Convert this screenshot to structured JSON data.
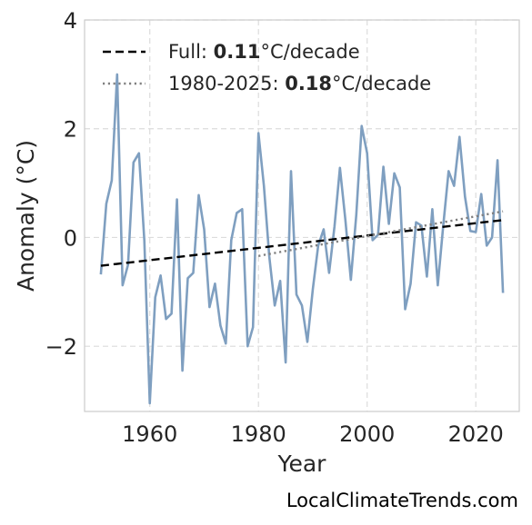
{
  "chart_data": {
    "type": "line",
    "xlabel": "Year",
    "ylabel": "Anomaly (°C)",
    "xlim": [
      1948,
      2028
    ],
    "ylim": [
      -3.2,
      4.0
    ],
    "xticks": [
      1960,
      1980,
      2000,
      2020
    ],
    "yticks": [
      -2,
      0,
      2,
      4
    ],
    "ytick_labels": [
      "−2",
      "0",
      "2",
      "4"
    ],
    "grid": true,
    "legend_position": "top-left",
    "series": [
      {
        "x": [
          1951,
          1952,
          1953,
          1954,
          1955,
          1956,
          1957,
          1958,
          1959,
          1960,
          1961,
          1962,
          1963,
          1964,
          1965,
          1966,
          1967,
          1968,
          1969,
          1970,
          1971,
          1972,
          1973,
          1974,
          1975,
          1976,
          1977,
          1978,
          1979,
          1980,
          1981,
          1982,
          1983,
          1984,
          1985,
          1986,
          1987,
          1988,
          1989,
          1990,
          1991,
          1992,
          1993,
          1994,
          1995,
          1996,
          1997,
          1998,
          1999,
          2000,
          2001,
          2002,
          2003,
          2004,
          2005,
          2006,
          2007,
          2008,
          2009,
          2010,
          2011,
          2012,
          2013,
          2014,
          2015,
          2016,
          2017,
          2018,
          2019,
          2020,
          2021,
          2022,
          2023,
          2024,
          2025
        ],
        "values": [
          -0.68,
          0.62,
          1.05,
          3.0,
          -0.88,
          -0.5,
          1.38,
          1.55,
          -0.05,
          -3.05,
          -1.1,
          -0.7,
          -1.5,
          -1.4,
          0.7,
          -2.45,
          -0.75,
          -0.65,
          0.78,
          0.15,
          -1.28,
          -0.85,
          -1.62,
          -1.95,
          -0.05,
          0.45,
          0.52,
          -2.0,
          -1.65,
          1.92,
          0.95,
          -0.35,
          -1.25,
          -0.8,
          -2.3,
          1.22,
          -1.05,
          -1.25,
          -1.92,
          -0.95,
          -0.15,
          0.15,
          -0.65,
          0.2,
          1.28,
          0.32,
          -0.78,
          0.42,
          2.05,
          1.55,
          -0.05,
          0.05,
          1.3,
          0.25,
          1.18,
          0.92,
          -1.32,
          -0.85,
          0.28,
          0.22,
          -0.72,
          0.52,
          -0.88,
          0.2,
          1.22,
          0.95,
          1.85,
          0.75,
          0.12,
          0.1,
          0.8,
          -0.15,
          0.0,
          1.42,
          -1.02
        ],
        "color": "#7f9fc0"
      }
    ],
    "trend_lines": [
      {
        "label": "Full: ",
        "value": "0.11",
        "unit": "°C/decade",
        "x": [
          1951,
          2025
        ],
        "y": [
          -0.52,
          0.32
        ],
        "style": "dashed",
        "color": "#000000"
      },
      {
        "label": "1980-2025: ",
        "value": "0.18",
        "unit": "°C/decade",
        "x": [
          1980,
          2025
        ],
        "y": [
          -0.34,
          0.48
        ],
        "style": "dotted",
        "color": "#808080"
      }
    ]
  },
  "watermark": "LocalClimateTrends.com"
}
